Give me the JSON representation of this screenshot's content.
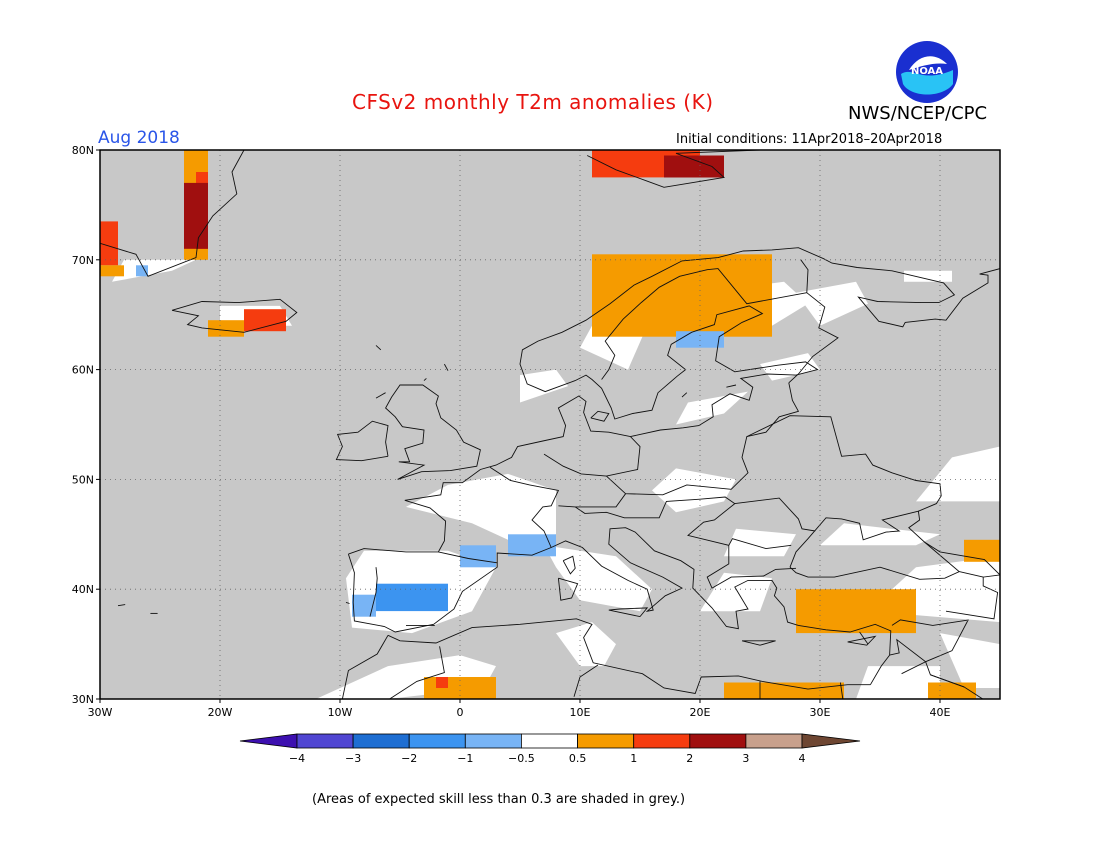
{
  "title": "CFSv2 monthly T2m anomalies (K)",
  "agency": "NWS/NCEP/CPC",
  "logo_text": "NOAA",
  "month": "Aug 2018",
  "initial_conditions": "Initial conditions: 11Apr2018–20Apr2018",
  "footnote": "(Areas of expected skill less than 0.3 are shaded in grey.)",
  "map": {
    "lon_range": [
      -30,
      45
    ],
    "lat_range": [
      30,
      80
    ],
    "lon_ticks": [
      {
        "value": -30,
        "label": "30W"
      },
      {
        "value": -20,
        "label": "20W"
      },
      {
        "value": -10,
        "label": "10W"
      },
      {
        "value": 0,
        "label": "0"
      },
      {
        "value": 10,
        "label": "10E"
      },
      {
        "value": 20,
        "label": "20E"
      },
      {
        "value": 30,
        "label": "30E"
      },
      {
        "value": 40,
        "label": "40E"
      }
    ],
    "lat_ticks": [
      {
        "value": 30,
        "label": "30N"
      },
      {
        "value": 40,
        "label": "40N"
      },
      {
        "value": 50,
        "label": "50N"
      },
      {
        "value": 60,
        "label": "60N"
      },
      {
        "value": 70,
        "label": "70N"
      },
      {
        "value": 80,
        "label": "80N"
      }
    ],
    "grid": true,
    "background_color": "#c8c8c8",
    "low_skill_color": "#c8c8c8",
    "near_zero_color": "#ffffff"
  },
  "legend": {
    "boundaries": [
      "−4",
      "−3",
      "−2",
      "−1",
      "−0.5",
      "0.5",
      "1",
      "2",
      "3",
      "4"
    ],
    "colors": [
      "#3d10b0",
      "#5046d2",
      "#1e6ed2",
      "#3c94f0",
      "#78b4f5",
      "#ffffff",
      "#f59b00",
      "#f53c0f",
      "#a00f0f",
      "#c8a08c",
      "#6e4632"
    ]
  },
  "anomaly_regions": [
    {
      "class": "1",
      "color": "#f59b00",
      "area": "Greenland",
      "lon": [
        -23,
        -21
      ],
      "lat": [
        70,
        80
      ]
    },
    {
      "class": "2",
      "color": "#f53c0f",
      "area": "Greenland",
      "lon": [
        -22,
        -21
      ],
      "lat": [
        71,
        78
      ]
    },
    {
      "class": "3",
      "color": "#a00f0f",
      "area": "Greenland",
      "lon": [
        -23,
        -21
      ],
      "lat": [
        71,
        77
      ]
    },
    {
      "class": "2",
      "color": "#f53c0f",
      "area": "East Greenland",
      "lon": [
        -30,
        -28.5
      ],
      "lat": [
        69.5,
        73.5
      ]
    },
    {
      "class": "1",
      "color": "#f59b00",
      "area": "East Greenland",
      "lon": [
        -30,
        -28
      ],
      "lat": [
        68.5,
        69.5
      ]
    },
    {
      "class": "-1",
      "color": "#78b4f5",
      "area": "East Greenland",
      "lon": [
        -27,
        -26
      ],
      "lat": [
        68.5,
        69.5
      ]
    },
    {
      "class": "2",
      "color": "#f53c0f",
      "area": "Iceland",
      "lon": [
        -18,
        -14.5
      ],
      "lat": [
        63.5,
        65.5
      ]
    },
    {
      "class": "1",
      "color": "#f59b00",
      "area": "Iceland",
      "lon": [
        -21,
        -18
      ],
      "lat": [
        63,
        64.5
      ]
    },
    {
      "class": "2",
      "color": "#f53c0f",
      "area": "Svalbard",
      "lon": [
        11,
        20
      ],
      "lat": [
        77.5,
        80
      ]
    },
    {
      "class": "3",
      "color": "#a00f0f",
      "area": "Svalbard",
      "lon": [
        17,
        22
      ],
      "lat": [
        77.5,
        79.5
      ]
    },
    {
      "class": "1",
      "color": "#f59b00",
      "area": "Norway coast",
      "lon": [
        11,
        26
      ],
      "lat": [
        63,
        70.5
      ]
    },
    {
      "class": "-1",
      "color": "#78b4f5",
      "area": "Gulf of Bothnia",
      "lon": [
        18,
        22
      ],
      "lat": [
        62,
        63.5
      ]
    },
    {
      "class": "-1",
      "color": "#78b4f5",
      "area": "Bay of Biscay / France",
      "lon": [
        0,
        3
      ],
      "lat": [
        42,
        44
      ]
    },
    {
      "class": "-1",
      "color": "#78b4f5",
      "area": "Gulf of Lion",
      "lon": [
        4,
        8
      ],
      "lat": [
        43,
        45
      ]
    },
    {
      "class": "-0.5",
      "color": "#3c94f0",
      "area": "Iberia",
      "lon": [
        -7,
        -1
      ],
      "lat": [
        38,
        40.5
      ]
    },
    {
      "class": "-1",
      "color": "#78b4f5",
      "area": "Iberia",
      "lon": [
        -9,
        -7
      ],
      "lat": [
        37.5,
        39.5
      ]
    },
    {
      "class": "1",
      "color": "#f59b00",
      "area": "Turkey",
      "lon": [
        28,
        38
      ],
      "lat": [
        36,
        40
      ]
    },
    {
      "class": "1",
      "color": "#f59b00",
      "area": "North Africa",
      "lon": [
        -3,
        3
      ],
      "lat": [
        30,
        32
      ]
    },
    {
      "class": "2",
      "color": "#f53c0f",
      "area": "North Africa",
      "lon": [
        -2,
        -1
      ],
      "lat": [
        31,
        32
      ]
    },
    {
      "class": "1",
      "color": "#f59b00",
      "area": "Libya / Egypt",
      "lon": [
        22,
        32
      ],
      "lat": [
        30,
        31.5
      ]
    },
    {
      "class": "1",
      "color": "#f59b00",
      "area": "Middle East",
      "lon": [
        39,
        43
      ],
      "lat": [
        30,
        31.5
      ]
    },
    {
      "class": "1",
      "color": "#f59b00",
      "area": "Caucasus",
      "lon": [
        42,
        45
      ],
      "lat": [
        42.5,
        44.5
      ]
    }
  ]
}
